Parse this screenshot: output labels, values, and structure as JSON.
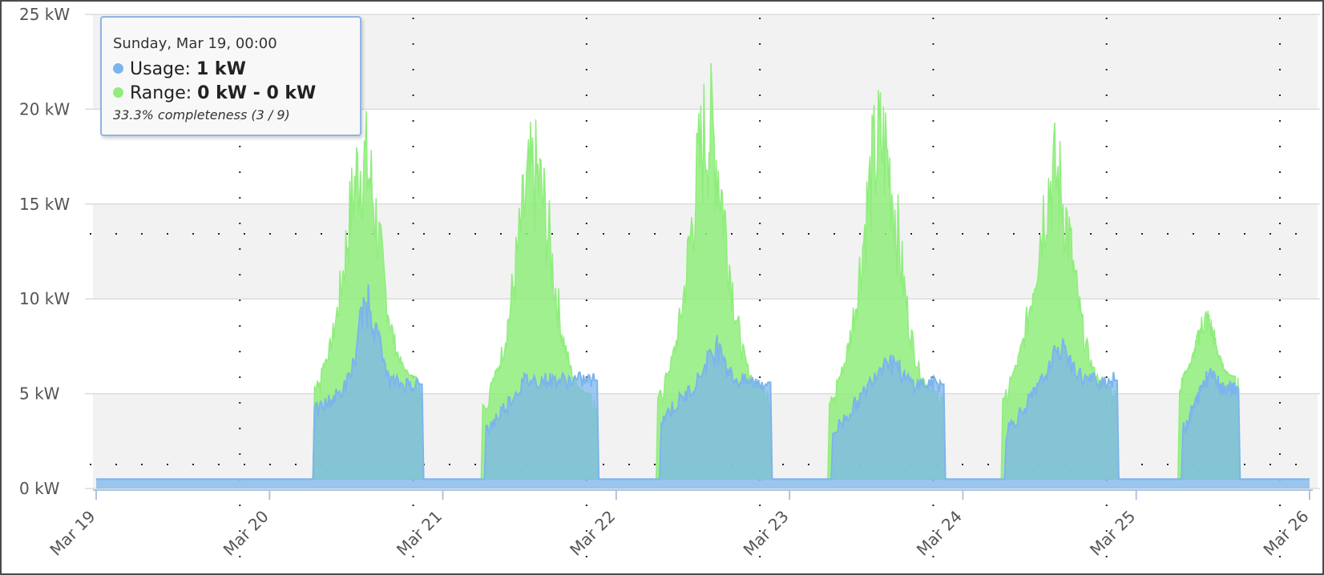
{
  "colors": {
    "usage": "#7cb5ec",
    "range": "#90ed7d",
    "band": "#f2f2f2",
    "grid": "#dcdcdc"
  },
  "tooltip": {
    "header": "Sunday, Mar 19, 00:00",
    "usage_label": "Usage:",
    "usage_value": "1 kW",
    "range_label": "Range:",
    "range_value": "0 kW - 0 kW",
    "completeness": "33.3% completeness (3 / 9)"
  },
  "chart_data": {
    "type": "area",
    "xlabel": "",
    "ylabel": "",
    "ylim": [
      0,
      25
    ],
    "y_ticks": [
      "0 kW",
      "5 kW",
      "10 kW",
      "15 kW",
      "20 kW",
      "25 kW"
    ],
    "x_ticks": [
      "Mar 19",
      "Mar 20",
      "Mar 21",
      "Mar 22",
      "Mar 23",
      "Mar 24",
      "Mar 25",
      "Mar 26"
    ],
    "xlim_days": [
      0,
      7
    ],
    "grid": true,
    "baseline_kw": 0.5,
    "series": [
      {
        "name": "Usage",
        "kind": "area",
        "days": [
          {
            "day": "Mar 20",
            "start": 1.26,
            "end": 1.88,
            "ramp": 4.0,
            "plateau": 5.5,
            "spike": 11.3
          },
          {
            "day": "Mar 21",
            "start": 2.25,
            "end": 2.89,
            "ramp": 3.0,
            "plateau": 5.7,
            "spike": 5.7
          },
          {
            "day": "Mar 22",
            "start": 3.26,
            "end": 3.89,
            "ramp": 3.7,
            "plateau": 5.6,
            "spike": 8.0
          },
          {
            "day": "Mar 23",
            "start": 4.25,
            "end": 4.89,
            "ramp": 2.9,
            "plateau": 5.5,
            "spike": 7.3
          },
          {
            "day": "Mar 24",
            "start": 5.25,
            "end": 5.89,
            "ramp": 3.0,
            "plateau": 5.7,
            "spike": 7.9
          },
          {
            "day": "Mar 25",
            "start": 6.27,
            "end": 6.59,
            "ramp": 3.0,
            "plateau": 5.3,
            "spike": 6.5
          }
        ]
      },
      {
        "name": "Range",
        "kind": "arearange",
        "days": [
          {
            "day": "Mar 20",
            "start": 1.26,
            "end": 1.88,
            "low": 0.5,
            "high_base": 5.8,
            "peak": 20.5
          },
          {
            "day": "Mar 21",
            "start": 2.23,
            "end": 2.89,
            "low": 0.5,
            "high_base": 4.9,
            "peak": 19.7
          },
          {
            "day": "Mar 22",
            "start": 3.24,
            "end": 3.89,
            "low": 0.5,
            "high_base": 5.2,
            "peak": 22.8
          },
          {
            "day": "Mar 23",
            "start": 4.23,
            "end": 4.89,
            "low": 0.5,
            "high_base": 5.0,
            "peak": 21.9
          },
          {
            "day": "Mar 24",
            "start": 5.23,
            "end": 5.89,
            "low": 0.5,
            "high_base": 5.3,
            "peak": 19.6
          },
          {
            "day": "Mar 25",
            "start": 6.25,
            "end": 6.59,
            "low": 0.5,
            "high_base": 5.9,
            "peak": 9.7
          }
        ]
      }
    ]
  }
}
